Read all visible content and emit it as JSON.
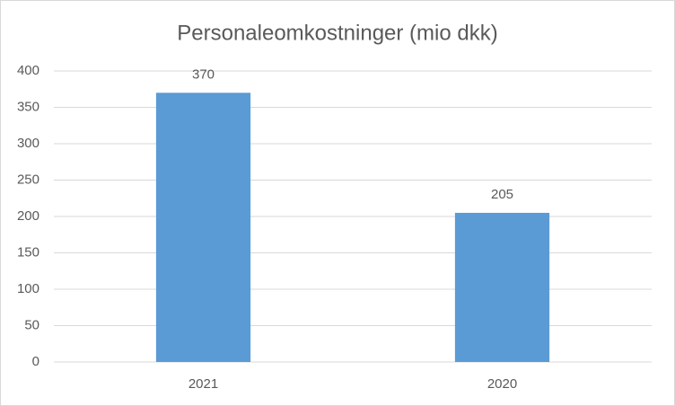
{
  "chart_data": {
    "type": "bar",
    "title": "Personaleomkostninger (mio dkk)",
    "categories": [
      "2021",
      "2020"
    ],
    "values": [
      370,
      205
    ],
    "color": "#5b9bd5",
    "ylim": [
      0,
      400
    ],
    "yticks": [
      0,
      50,
      100,
      150,
      200,
      250,
      300,
      350,
      400
    ],
    "grid": true
  }
}
